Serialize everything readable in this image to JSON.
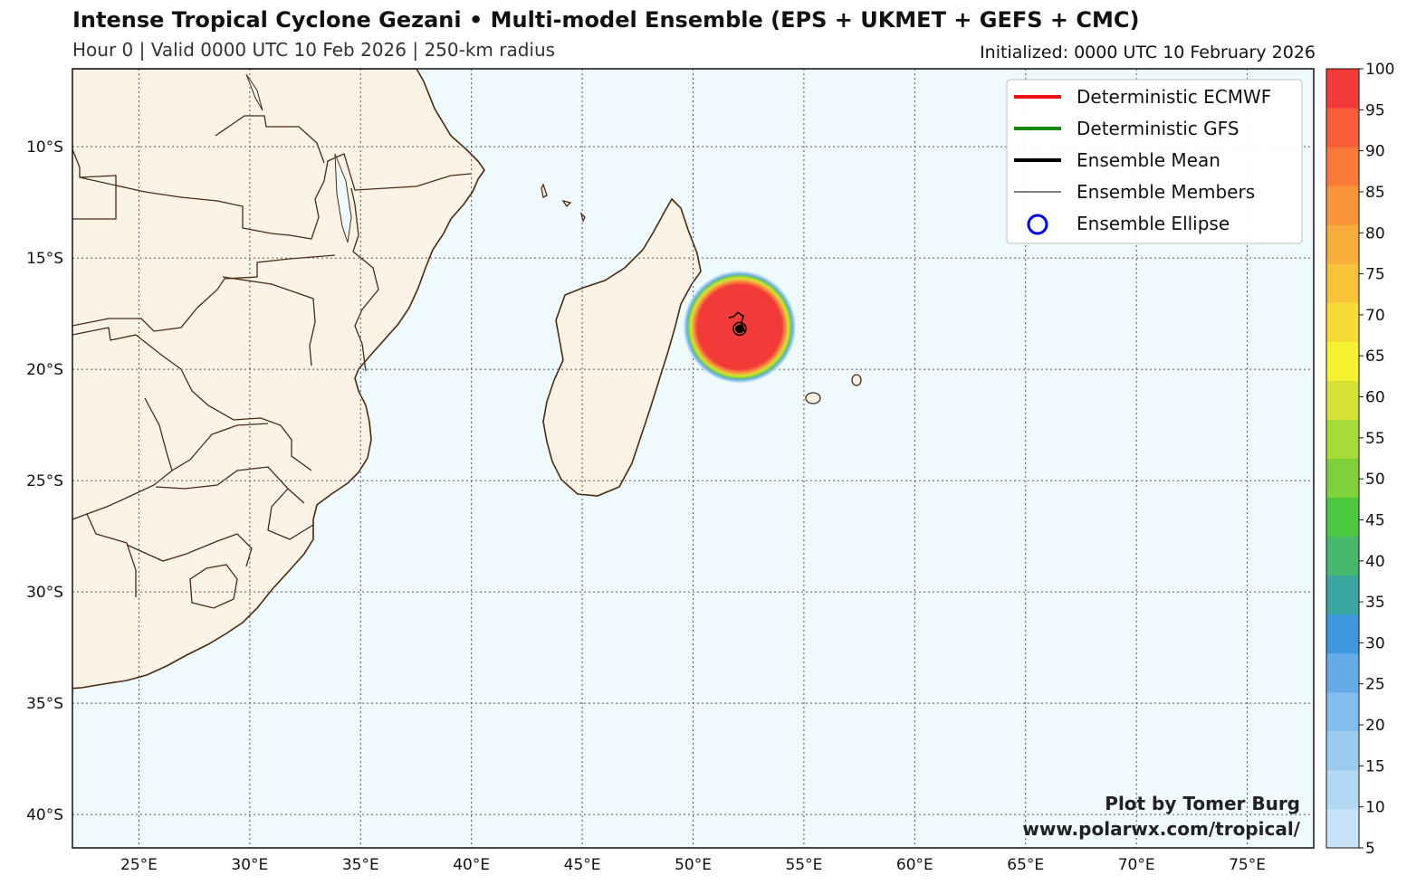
{
  "header": {
    "title": "Intense Tropical Cyclone Gezani • Multi-model Ensemble (EPS + UKMET + GEFS + CMC)",
    "subtitle": "Hour 0 | Valid 0000 UTC 10 Feb 2026 | 250-km radius",
    "initialized": "Initialized: 0000 UTC 10 February 2026"
  },
  "map": {
    "lon_range": [
      22,
      78
    ],
    "lat_range": [
      -41.5,
      -6.5
    ],
    "lat_ticks": [
      {
        "value": -10,
        "label": "10°S"
      },
      {
        "value": -15,
        "label": "15°S"
      },
      {
        "value": -20,
        "label": "20°S"
      },
      {
        "value": -25,
        "label": "25°S"
      },
      {
        "value": -30,
        "label": "30°S"
      },
      {
        "value": -35,
        "label": "35°S"
      },
      {
        "value": -40,
        "label": "40°S"
      }
    ],
    "lon_ticks": [
      {
        "value": 25,
        "label": "25°E"
      },
      {
        "value": 30,
        "label": "30°E"
      },
      {
        "value": 35,
        "label": "35°E"
      },
      {
        "value": 40,
        "label": "40°E"
      },
      {
        "value": 45,
        "label": "45°E"
      },
      {
        "value": 50,
        "label": "50°E"
      },
      {
        "value": 55,
        "label": "55°E"
      },
      {
        "value": 60,
        "label": "60°E"
      },
      {
        "value": 65,
        "label": "65°E"
      },
      {
        "value": 70,
        "label": "70°E"
      },
      {
        "value": 75,
        "label": "75°E"
      }
    ],
    "ocean_color": "#eefafd",
    "land_color": "#fbf3e6",
    "coast_color": "#4a2a12",
    "storm_center": {
      "lon": 52.1,
      "lat": -18.1
    },
    "strike_probability_max": 100
  },
  "legend": {
    "items": [
      {
        "label": "Deterministic ECMWF",
        "color": "#ee1111",
        "style": "line-thick"
      },
      {
        "label": "Deterministic GFS",
        "color": "#118811",
        "style": "line-thick"
      },
      {
        "label": "Ensemble Mean",
        "color": "#000000",
        "style": "line-thick"
      },
      {
        "label": "Ensemble Members",
        "color": "#000000",
        "style": "line-thin"
      },
      {
        "label": "Ensemble Ellipse",
        "color": "#0000ee",
        "style": "circle"
      }
    ]
  },
  "colorbar": {
    "labels": [
      "5",
      "10",
      "15",
      "20",
      "25",
      "30",
      "35",
      "40",
      "45",
      "50",
      "55",
      "60",
      "65",
      "70",
      "75",
      "80",
      "85",
      "90",
      "95",
      "100"
    ],
    "colors": [
      "#c6e3f7",
      "#b2d8f4",
      "#9ccbf0",
      "#83bdec",
      "#63aae6",
      "#3f97e0",
      "#3aa6a0",
      "#46b86b",
      "#49c840",
      "#7dd13b",
      "#a7dc38",
      "#d4e336",
      "#f5f232",
      "#f7dc35",
      "#f7c438",
      "#f7ad3a",
      "#f8953a",
      "#f97a38",
      "#f85d38",
      "#f23a38"
    ]
  },
  "credit": {
    "line1": "Plot by Tomer Burg",
    "line2": "www.polarwx.com/tropical/"
  }
}
